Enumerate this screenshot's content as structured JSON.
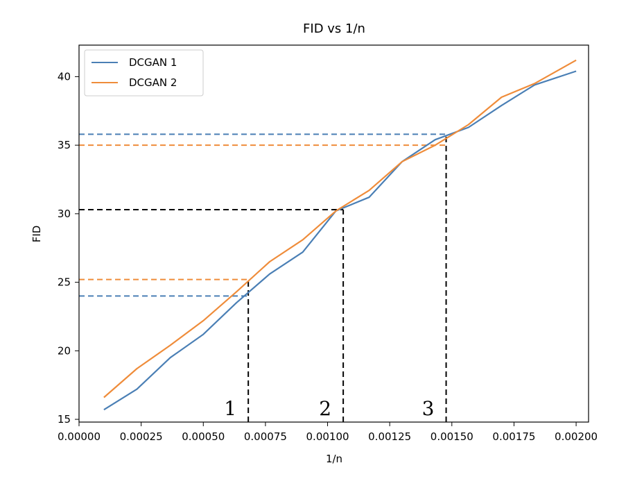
{
  "chart_data": {
    "type": "line",
    "title": "FID vs 1/n",
    "xlabel": "1/n",
    "ylabel": "FID",
    "xlim": [
      0.0,
      0.00205
    ],
    "ylim": [
      14.8,
      42.3
    ],
    "xticks": [
      0.0,
      0.00025,
      0.0005,
      0.00075,
      0.001,
      0.00125,
      0.0015,
      0.00175,
      0.002
    ],
    "xtick_labels": [
      "0.00000",
      "0.00025",
      "0.00050",
      "0.00075",
      "0.00100",
      "0.00125",
      "0.00150",
      "0.00175",
      "0.00200"
    ],
    "yticks": [
      15,
      20,
      25,
      30,
      35,
      40
    ],
    "ytick_labels": [
      "15",
      "20",
      "25",
      "30",
      "35",
      "40"
    ],
    "grid": false,
    "legend": "top-left",
    "series": [
      {
        "name": "DCGAN 1",
        "color": "#4a7fb5",
        "x": [
          0.0001,
          0.000233,
          0.000367,
          0.0005,
          0.000633,
          0.000767,
          0.0009,
          0.001033,
          0.001167,
          0.0013,
          0.001433,
          0.001567,
          0.0017,
          0.001833,
          0.002
        ],
        "y": [
          15.7,
          17.2,
          19.5,
          21.2,
          23.5,
          25.6,
          27.2,
          30.2,
          31.2,
          33.8,
          35.4,
          36.3,
          37.9,
          39.4,
          40.4
        ]
      },
      {
        "name": "DCGAN 2",
        "color": "#ef8c3a",
        "x": [
          0.0001,
          0.000233,
          0.000367,
          0.0005,
          0.000633,
          0.000767,
          0.0009,
          0.001033,
          0.001167,
          0.0013,
          0.001433,
          0.001567,
          0.0017,
          0.001833,
          0.002
        ],
        "y": [
          16.6,
          18.7,
          20.4,
          22.2,
          24.3,
          26.5,
          28.1,
          30.2,
          31.7,
          33.8,
          35.0,
          36.5,
          38.5,
          39.5,
          41.2
        ]
      }
    ],
    "reference_lines": [
      {
        "axis": "h",
        "y": 35.8,
        "x_end": 0.001477,
        "color": "#4a7fb5"
      },
      {
        "axis": "h",
        "y": 35.0,
        "x_end": 0.001477,
        "color": "#ef8c3a"
      },
      {
        "axis": "h",
        "y": 30.3,
        "x_end": 0.001063,
        "color": "#000000"
      },
      {
        "axis": "h",
        "y": 25.2,
        "x_end": 0.000681,
        "color": "#ef8c3a"
      },
      {
        "axis": "h",
        "y": 24.0,
        "x_end": 0.000681,
        "color": "#4a7fb5"
      },
      {
        "axis": "v",
        "x": 0.000681,
        "y_end": 25.2,
        "color": "#000000"
      },
      {
        "axis": "v",
        "x": 0.001063,
        "y_end": 30.3,
        "color": "#000000"
      },
      {
        "axis": "v",
        "x": 0.001477,
        "y_end": 35.8,
        "color": "#000000"
      }
    ],
    "annotations": [
      {
        "text": "1",
        "x": 0.000681
      },
      {
        "text": "2",
        "x": 0.001063
      },
      {
        "text": "3",
        "x": 0.001477
      }
    ]
  }
}
